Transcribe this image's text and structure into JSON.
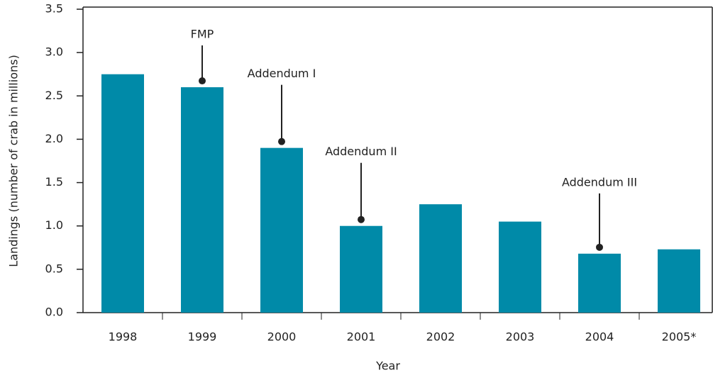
{
  "chart_data": {
    "type": "bar",
    "x_label": "Year",
    "y_label": "Landings (number of crab in millions)",
    "categories": [
      "1998",
      "1999",
      "2000",
      "2001",
      "2002",
      "2003",
      "2004",
      "2005*"
    ],
    "values": [
      2.75,
      2.6,
      1.9,
      1.0,
      1.25,
      1.05,
      0.68,
      0.73
    ],
    "color": "#008aa8",
    "ylim": [
      0,
      3.5
    ],
    "yticks": [
      {
        "value": 0,
        "label": "0.0"
      },
      {
        "value": 0.5,
        "label": "0.5"
      },
      {
        "value": 1,
        "label": "1.0"
      },
      {
        "value": 1.5,
        "label": "1.5"
      },
      {
        "value": 2,
        "label": "2.0"
      },
      {
        "value": 2.5,
        "label": "2.5"
      },
      {
        "value": 3,
        "label": "3.0"
      },
      {
        "value": 3.5,
        "label": "3.5"
      }
    ],
    "annotations": [
      {
        "label": "FMP",
        "x": "1999"
      },
      {
        "label": "Addendum I",
        "x": "2000"
      },
      {
        "label": "Addendum II",
        "x": "2001"
      },
      {
        "label": "Addendum III",
        "x": "2004"
      }
    ]
  }
}
